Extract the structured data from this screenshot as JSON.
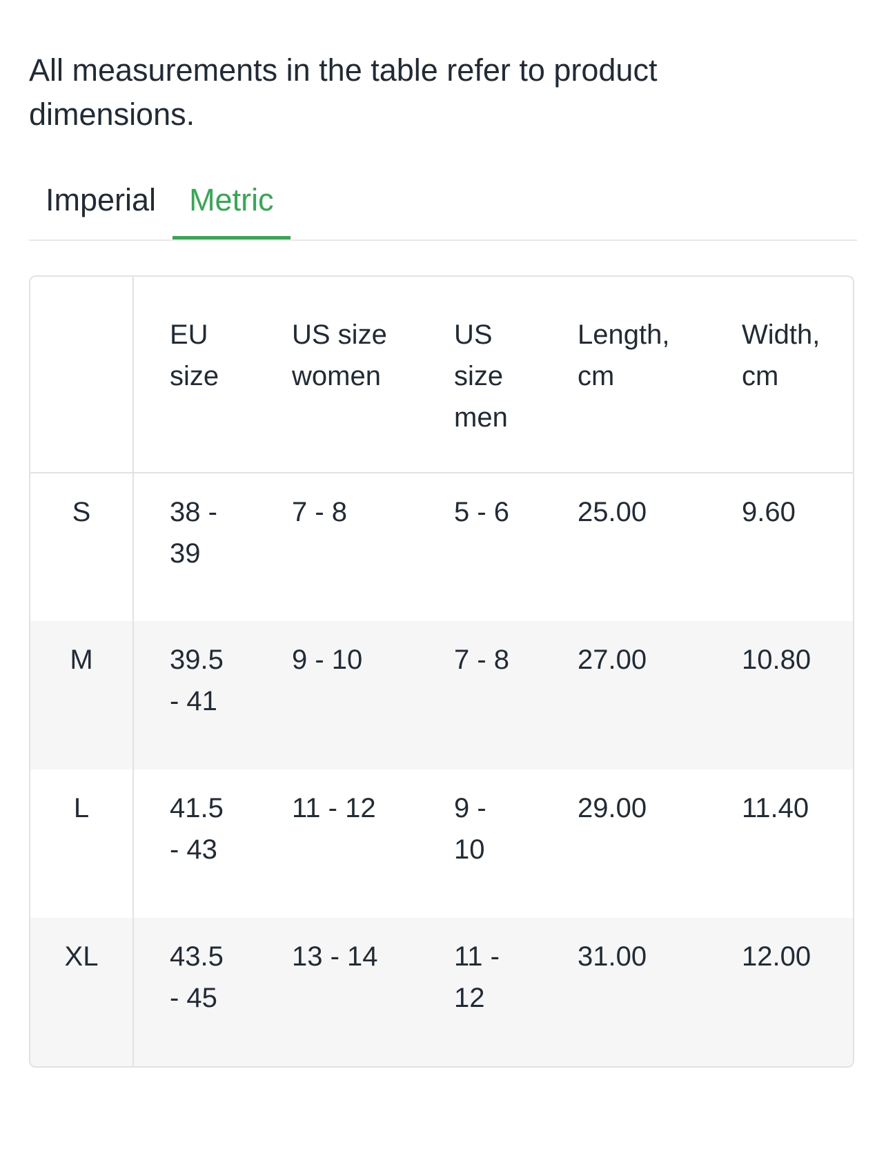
{
  "intro": "All measurements in the table refer to product dimensions.",
  "tabs": [
    {
      "label": "Imperial",
      "active": false
    },
    {
      "label": "Metric",
      "active": true
    }
  ],
  "colors": {
    "accent_green": "#34a853",
    "text": "#212b36",
    "border": "#e2e2e2",
    "row_alt_bg": "#f6f6f6"
  },
  "table": {
    "columns": [
      "",
      "EU size",
      "US size women",
      "US size men",
      "Length, cm",
      "Width, cm"
    ],
    "rows": [
      {
        "size": "S",
        "eu": "38 - 39",
        "us_women": "7 - 8",
        "us_men": "5 - 6",
        "length_cm": "25.00",
        "width_cm": "9.60"
      },
      {
        "size": "M",
        "eu": "39.5 - 41",
        "us_women": "9 - 10",
        "us_men": "7 - 8",
        "length_cm": "27.00",
        "width_cm": "10.80"
      },
      {
        "size": "L",
        "eu": "41.5 - 43",
        "us_women": "11 - 12",
        "us_men": "9 - 10",
        "length_cm": "29.00",
        "width_cm": "11.40"
      },
      {
        "size": "XL",
        "eu": "43.5 - 45",
        "us_women": "13 - 14",
        "us_men": "11 - 12",
        "length_cm": "31.00",
        "width_cm": "12.00"
      }
    ]
  }
}
